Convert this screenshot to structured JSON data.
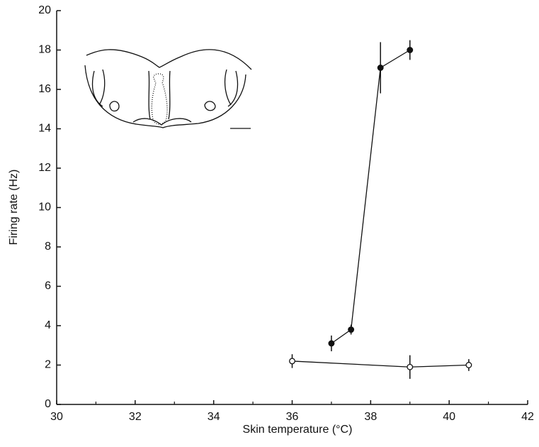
{
  "chart_data": {
    "type": "scatter",
    "x_label": "Skin temperature (°C)",
    "y_label": "Firing rate (Hz)",
    "xlim": [
      30,
      42
    ],
    "xticks": [
      30,
      32,
      34,
      36,
      38,
      40,
      42
    ],
    "xminorticks": [
      31,
      33,
      35,
      37,
      39,
      41
    ],
    "ylim": [
      0,
      20
    ],
    "yticks": [
      0,
      2,
      4,
      6,
      8,
      10,
      12,
      14,
      16,
      18,
      20
    ],
    "series": [
      {
        "color": "#111111",
        "fill": "#111111",
        "x": [
          37,
          37.5,
          38.25,
          39
        ],
        "values": [
          3.1,
          3.8,
          17.1,
          18
        ],
        "errors": [
          0.4,
          0.25,
          1.3,
          0.5
        ]
      },
      {
        "color": "#111111",
        "fill": "#ffffff",
        "x": [
          36,
          39,
          40.5
        ],
        "values": [
          2.2,
          1.9,
          2.0
        ],
        "errors": [
          0.35,
          0.6,
          0.3
        ]
      }
    ]
  }
}
